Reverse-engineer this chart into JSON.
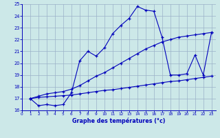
{
  "line1_x": [
    1,
    2,
    3,
    4,
    5,
    6,
    7,
    8,
    9,
    10,
    11,
    12,
    13,
    14,
    15,
    16,
    17,
    18,
    19,
    20,
    21,
    22,
    23
  ],
  "line1_y": [
    17.0,
    16.4,
    16.5,
    16.4,
    16.5,
    17.5,
    20.2,
    21.0,
    20.6,
    21.3,
    22.5,
    23.2,
    23.8,
    24.8,
    24.5,
    24.4,
    22.2,
    19.0,
    19.0,
    19.1,
    20.7,
    19.0,
    22.6
  ],
  "line2_x": [
    1,
    2,
    3,
    4,
    5,
    6,
    7,
    8,
    9,
    10,
    11,
    12,
    13,
    14,
    15,
    16,
    17,
    18,
    19,
    20,
    21,
    22,
    23
  ],
  "line2_y": [
    17.0,
    17.1,
    17.15,
    17.2,
    17.25,
    17.3,
    17.4,
    17.5,
    17.6,
    17.7,
    17.75,
    17.85,
    17.95,
    18.05,
    18.15,
    18.25,
    18.35,
    18.45,
    18.5,
    18.6,
    18.7,
    18.8,
    18.9
  ],
  "line3_x": [
    1,
    2,
    3,
    4,
    5,
    6,
    7,
    8,
    9,
    10,
    11,
    12,
    13,
    14,
    15,
    16,
    17,
    18,
    19,
    20,
    21,
    22,
    23
  ],
  "line3_y": [
    17.0,
    17.2,
    17.4,
    17.5,
    17.6,
    17.8,
    18.1,
    18.5,
    18.9,
    19.2,
    19.6,
    20.0,
    20.4,
    20.8,
    21.2,
    21.5,
    21.8,
    22.0,
    22.2,
    22.3,
    22.4,
    22.5,
    22.6
  ],
  "line_color": "#0000bb",
  "bg_color": "#cce8e8",
  "grid_color": "#9ab0c8",
  "xlabel": "Graphe des températures (°c)",
  "xlim": [
    0.5,
    23.5
  ],
  "ylim": [
    16,
    25
  ],
  "xticks": [
    0,
    1,
    2,
    3,
    4,
    5,
    6,
    7,
    8,
    9,
    10,
    11,
    12,
    13,
    14,
    15,
    16,
    17,
    18,
    19,
    20,
    21,
    22,
    23
  ],
  "yticks": [
    16,
    17,
    18,
    19,
    20,
    21,
    22,
    23,
    24,
    25
  ]
}
